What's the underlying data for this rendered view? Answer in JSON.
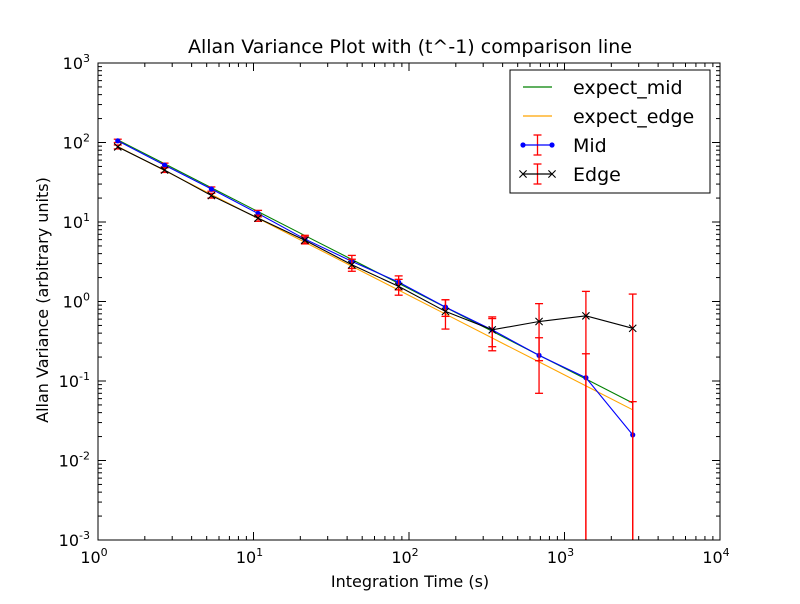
{
  "chart_data": {
    "type": "line",
    "title": "Allan Variance Plot with (t^-1) comparison line",
    "xlabel": "Integration Time (s)",
    "ylabel": "Allan Variance (arbitrary units)",
    "xscale": "log",
    "yscale": "log",
    "xlim": [
      1,
      10000
    ],
    "ylim": [
      0.001,
      1000
    ],
    "xticks": [
      {
        "value": 1,
        "base": "10",
        "exp": "0"
      },
      {
        "value": 10,
        "base": "10",
        "exp": "1"
      },
      {
        "value": 100,
        "base": "10",
        "exp": "2"
      },
      {
        "value": 1000,
        "base": "10",
        "exp": "3"
      },
      {
        "value": 10000,
        "base": "10",
        "exp": "4"
      }
    ],
    "yticks": [
      {
        "value": 0.001,
        "base": "10",
        "exp": "-3"
      },
      {
        "value": 0.01,
        "base": "10",
        "exp": "-2"
      },
      {
        "value": 0.1,
        "base": "10",
        "exp": "-1"
      },
      {
        "value": 1,
        "base": "10",
        "exp": "0"
      },
      {
        "value": 10,
        "base": "10",
        "exp": "1"
      },
      {
        "value": 100,
        "base": "10",
        "exp": "2"
      },
      {
        "value": 1000,
        "base": "10",
        "exp": "3"
      }
    ],
    "grid": false,
    "legend_position": "top-right",
    "series": [
      {
        "name": "expect_mid",
        "kind": "line",
        "color": "#008000",
        "x": [
          1.34,
          2.68,
          5.36,
          10.7,
          21.4,
          42.9,
          85.8,
          171.6,
          343,
          686,
          1373,
          2746
        ],
        "y": [
          108,
          54,
          27,
          13.5,
          6.75,
          3.38,
          1.69,
          0.845,
          0.422,
          0.211,
          0.106,
          0.0528
        ]
      },
      {
        "name": "expect_edge",
        "kind": "line",
        "color": "#ffa500",
        "x": [
          1.34,
          2.68,
          5.36,
          10.7,
          21.4,
          42.9,
          85.8,
          171.6,
          343,
          686,
          1373,
          2746
        ],
        "y": [
          89,
          44.5,
          22.2,
          11.1,
          5.56,
          2.78,
          1.39,
          0.695,
          0.347,
          0.174,
          0.0868,
          0.0434
        ]
      },
      {
        "name": "Mid",
        "kind": "errorbar",
        "color": "#0000ff",
        "marker": "dot",
        "error_color": "#ff0000",
        "x": [
          1.34,
          2.68,
          5.36,
          10.7,
          21.4,
          42.9,
          85.8,
          171.6,
          343,
          686,
          1373,
          2746
        ],
        "y": [
          105,
          52,
          26,
          12.8,
          6.1,
          3.2,
          1.75,
          0.85,
          0.44,
          0.21,
          0.11,
          0.021
        ],
        "err": [
          5,
          3,
          1.6,
          1.2,
          0.7,
          0.6,
          0.35,
          0.2,
          0.17,
          0.14,
          0.11,
          0.034
        ]
      },
      {
        "name": "Edge",
        "kind": "errorbar",
        "color": "#000000",
        "marker": "x",
        "error_color": "#ff0000",
        "x": [
          1.34,
          2.68,
          5.36,
          10.7,
          21.4,
          42.9,
          85.8,
          171.6,
          343,
          686,
          1373,
          2746
        ],
        "y": [
          88,
          45,
          21.5,
          11.2,
          5.9,
          2.9,
          1.55,
          0.75,
          0.44,
          0.56,
          0.66,
          0.46
        ],
        "err": [
          5,
          3,
          1.5,
          1.0,
          0.6,
          0.5,
          0.35,
          0.3,
          0.2,
          0.38,
          0.68,
          0.78
        ]
      }
    ]
  }
}
